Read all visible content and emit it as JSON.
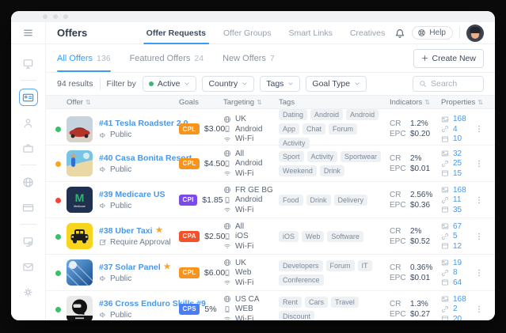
{
  "window": {
    "title_bar_dots": 3
  },
  "sidebar": {
    "icons": [
      {
        "name": "dashboard",
        "icon": "monitor",
        "active": false
      },
      {
        "name": "offers",
        "icon": "idcard",
        "active": true
      },
      {
        "name": "affiliates",
        "icon": "user",
        "active": false
      },
      {
        "name": "advertisers",
        "icon": "briefcase",
        "active": false
      },
      {
        "name": "network",
        "icon": "globe",
        "active": false
      },
      {
        "name": "billing",
        "icon": "card",
        "active": false
      },
      {
        "name": "automation",
        "icon": "moncog",
        "active": false
      },
      {
        "name": "messages",
        "icon": "mail",
        "active": false
      },
      {
        "name": "settings",
        "icon": "gear",
        "active": false
      }
    ],
    "dividers_after": [
      0,
      3,
      5
    ]
  },
  "header": {
    "title": "Offers",
    "tabs": [
      {
        "label": "Offer Requests",
        "active": true
      },
      {
        "label": "Offer Groups",
        "active": false
      },
      {
        "label": "Smart Links",
        "active": false
      },
      {
        "label": "Creatives",
        "active": false
      }
    ],
    "help_label": "Help"
  },
  "subtabs": [
    {
      "label": "All Offers",
      "count": "136",
      "active": true
    },
    {
      "label": "Featured Offers",
      "count": "24",
      "active": false
    },
    {
      "label": "New Offers",
      "count": "7",
      "active": false
    }
  ],
  "create_new": {
    "label": "Create New"
  },
  "filters": {
    "results": "94 results",
    "filter_by": "Filter by",
    "dropdowns": [
      {
        "label": "Active",
        "status_dot": "#3cb878"
      },
      {
        "label": "Country"
      },
      {
        "label": "Tags"
      },
      {
        "label": "Goal Type"
      }
    ],
    "search_placeholder": "Search"
  },
  "table": {
    "columns": [
      {
        "label": "Offer",
        "sortable": true
      },
      {
        "label": "Goals",
        "sortable": false
      },
      {
        "label": "Targeting",
        "sortable": true
      },
      {
        "label": "Tags",
        "sortable": false
      },
      {
        "label": "Indicators",
        "sortable": true
      },
      {
        "label": "Properties",
        "sortable": true
      }
    ],
    "indicator_labels": {
      "cr": "CR",
      "epc": "EPC"
    },
    "rows": [
      {
        "status": "#3dbe6c",
        "thumb": "tesla",
        "name": "#41 Tesla Roadster 2.0",
        "starred": false,
        "visibility": "Public",
        "visibility_icon": "speaker",
        "goal": {
          "type": "CPL",
          "color": "#f7941e",
          "value": "$3.00"
        },
        "targeting": {
          "geo": "UK",
          "device": "Android",
          "connection": "Wi-Fi"
        },
        "tags": [
          "Dating",
          "Android",
          "Android",
          "App",
          "Chat",
          "Forum",
          "Activity"
        ],
        "cr": "1.2%",
        "epc": "$0.20",
        "props": {
          "creatives": "168",
          "links": "4",
          "pages": "10"
        }
      },
      {
        "status": "#f5a623",
        "thumb": "beach",
        "name": "#40 Casa Bonita Resort",
        "starred": false,
        "visibility": "Public",
        "visibility_icon": "speaker",
        "goal": {
          "type": "CPL",
          "color": "#f7941e",
          "value": "$4.50"
        },
        "targeting": {
          "geo": "All",
          "device": "Android",
          "connection": "Wi-Fi"
        },
        "tags": [
          "Sport",
          "Activity",
          "Sportwear",
          "Weekend",
          "Drink"
        ],
        "cr": "2%",
        "epc": "$0.01",
        "props": {
          "creatives": "32",
          "links": "25",
          "pages": "15"
        }
      },
      {
        "status": "#f4433a",
        "thumb": "medicare",
        "name": "#39 Medicare US",
        "starred": false,
        "visibility": "Public",
        "visibility_icon": "speaker",
        "goal": {
          "type": "CPI",
          "color": "#7a4be8",
          "value": "$1.85"
        },
        "targeting": {
          "geo": "FR GE BG",
          "device": "Android",
          "connection": "Wi-Fi"
        },
        "tags": [
          "Food",
          "Drink",
          "Delivery"
        ],
        "cr": "2.56%",
        "epc": "$0.36",
        "props": {
          "creatives": "168",
          "links": "11",
          "pages": "35"
        }
      },
      {
        "status": "#3dbe6c",
        "thumb": "taxi",
        "name": "#38 Uber Taxi",
        "starred": true,
        "visibility": "Require Approval",
        "visibility_icon": "pencil",
        "goal": {
          "type": "CPA",
          "color": "#f4502a",
          "value": "$2.50"
        },
        "targeting": {
          "geo": "All",
          "device": "iOS",
          "connection": "Wi-Fi"
        },
        "tags": [
          "iOS",
          "Web",
          "Software"
        ],
        "cr": "2%",
        "epc": "$0.52",
        "props": {
          "creatives": "67",
          "links": "5",
          "pages": "12"
        }
      },
      {
        "status": "#3dbe6c",
        "thumb": "solar",
        "name": "#37 Solar Panel",
        "starred": true,
        "visibility": "Public",
        "visibility_icon": "speaker",
        "goal": {
          "type": "CPL",
          "color": "#f7941e",
          "value": "$6.00"
        },
        "targeting": {
          "geo": "UK",
          "device": "Web",
          "connection": "Wi-Fi"
        },
        "tags": [
          "Developers",
          "Forum",
          "IT",
          "Conference"
        ],
        "cr": "0.36%",
        "epc": "$0.01",
        "props": {
          "creatives": "19",
          "links": "8",
          "pages": "64"
        }
      },
      {
        "status": "#3dbe6c",
        "thumb": "helmet",
        "name": "#36 Cross Enduro Skills #9",
        "starred": false,
        "visibility": "Public",
        "visibility_icon": "speaker",
        "goal": {
          "type": "CPS",
          "color": "#4a7cf5",
          "value": "5%"
        },
        "targeting": {
          "geo": "US CA",
          "device": "WEB",
          "connection": "Wi-Fi"
        },
        "tags": [
          "Rent",
          "Cars",
          "Travel",
          "Discount"
        ],
        "cr": "1.3%",
        "epc": "$0.27",
        "props": {
          "creatives": "168",
          "links": "2",
          "pages": "20"
        }
      }
    ]
  }
}
